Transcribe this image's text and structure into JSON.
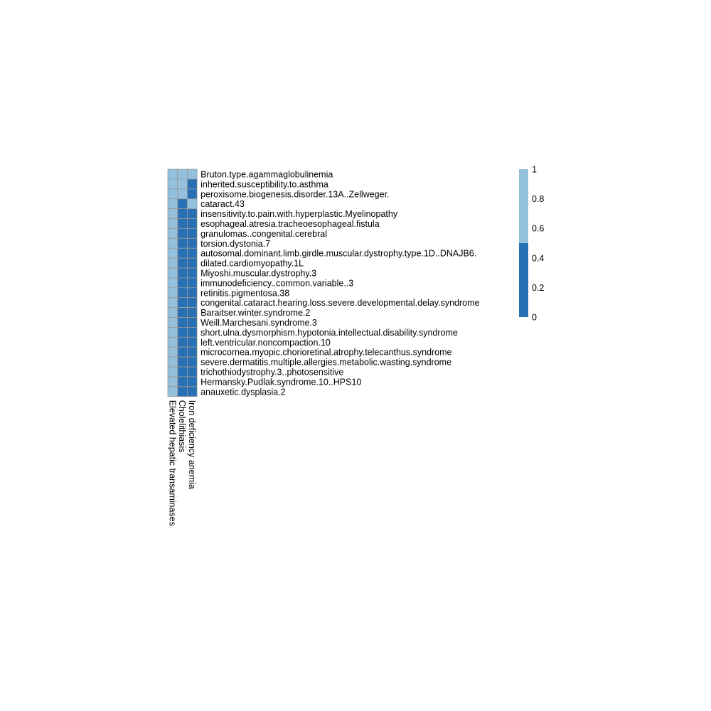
{
  "chart_data": {
    "type": "heatmap",
    "title": "",
    "xlabel": "",
    "ylabel": "",
    "columns": [
      "Elevated hepatic transaminases",
      "Cholelithiasis",
      "Iron deficiency anemia"
    ],
    "rows": [
      "Bruton.type.agammaglobulinemia",
      "inherited.susceptibility.to.asthma",
      "peroxisome.biogenesis.disorder.13A..Zellweger.",
      "cataract.43",
      "insensitivity.to.pain.with.hyperplastic.Myelinopathy",
      "esophageal.atresia.tracheoesophageal.fistula",
      "granulomas..congenital.cerebral",
      "torsion.dystonia.7",
      "autosomal.dominant.limb.girdle.muscular.dystrophy.type.1D..DNAJB6.",
      "dilated.cardiomyopathy.1L",
      "Miyoshi.muscular.dystrophy.3",
      "immunodeficiency..common.variable..3",
      "retinitis.pigmentosa.38",
      "congenital.cataract.hearing.loss.severe.developmental.delay.syndrome",
      "Baraitser.winter.syndrome.2",
      "Weill.Marchesani.syndrome.3",
      "short.ulna.dysmorphism.hypotonia.intellectual.disability.syndrome",
      "left.ventricular.noncompaction.10",
      "microcornea.myopic.chorioretinal.atrophy.telecanthus.syndrome",
      "severe.dermatitis.multiple.allergies.metabolic.wasting.syndrome",
      "trichothiodystrophy.3..photosensitive",
      "Hermansky.Pudlak.syndrome.10..HPS10",
      "anauxetic.dysplasia.2"
    ],
    "values": [
      [
        1,
        1,
        1
      ],
      [
        1,
        1,
        0
      ],
      [
        1,
        1,
        0
      ],
      [
        1,
        0,
        1
      ],
      [
        1,
        0,
        0
      ],
      [
        1,
        0,
        0
      ],
      [
        1,
        0,
        0
      ],
      [
        1,
        0,
        0
      ],
      [
        1,
        0,
        0
      ],
      [
        1,
        0,
        0
      ],
      [
        1,
        0,
        0
      ],
      [
        1,
        0,
        0
      ],
      [
        1,
        0,
        0
      ],
      [
        1,
        0,
        0
      ],
      [
        1,
        0,
        0
      ],
      [
        1,
        0,
        0
      ],
      [
        1,
        0,
        0
      ],
      [
        1,
        0,
        0
      ],
      [
        1,
        0,
        0
      ],
      [
        1,
        0,
        0
      ],
      [
        1,
        0,
        0
      ],
      [
        1,
        0,
        0
      ],
      [
        1,
        0,
        0
      ]
    ],
    "color_low": "#2870b4",
    "color_high": "#92c0dd",
    "cell_border": "#999999",
    "legend": {
      "placement": "right",
      "ticks": [
        0,
        0.2,
        0.4,
        0.6,
        0.8,
        1
      ],
      "tick_labels": [
        "0",
        "0.2",
        "0.4",
        "0.6",
        "0.8",
        "1"
      ],
      "range": [
        0,
        1
      ],
      "break": 0.5
    }
  }
}
